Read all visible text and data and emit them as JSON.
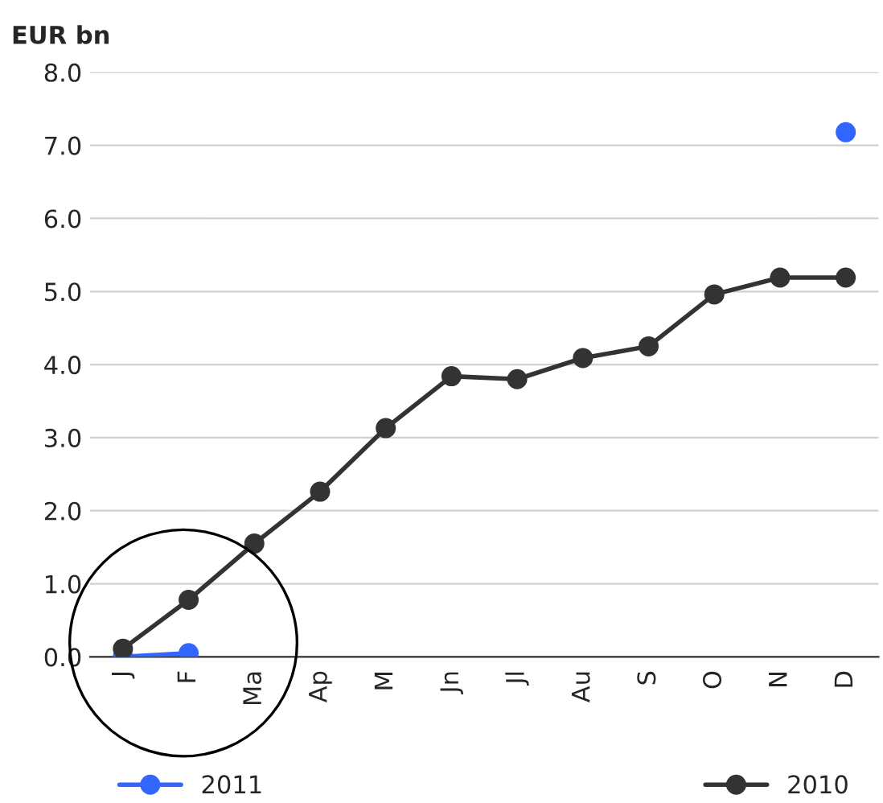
{
  "chart_data": {
    "type": "line",
    "ylabel": "EUR bn",
    "categories": [
      "J",
      "F",
      "Ma",
      "Ap",
      "M",
      "Jn",
      "Jl",
      "Au",
      "S",
      "O",
      "N",
      "D"
    ],
    "series": [
      {
        "name": "2011",
        "color": "#3366ff",
        "values": [
          0.0,
          0.05,
          null,
          null,
          null,
          null,
          null,
          null,
          null,
          null,
          null,
          7.18
        ]
      },
      {
        "name": "2010",
        "color": "#333333",
        "values": [
          0.11,
          0.78,
          1.55,
          2.26,
          3.13,
          3.84,
          3.8,
          4.09,
          4.25,
          4.96,
          5.19,
          5.19
        ]
      }
    ],
    "ylim": [
      0,
      8
    ],
    "yticks": [
      {
        "value": 0,
        "label": "0.0"
      },
      {
        "value": 1,
        "label": "1.0"
      },
      {
        "value": 2,
        "label": "2.0"
      },
      {
        "value": 3,
        "label": "3.0"
      },
      {
        "value": 4,
        "label": "4.0"
      },
      {
        "value": 5,
        "label": "5.0"
      },
      {
        "value": 6,
        "label": "6.0"
      },
      {
        "value": 7,
        "label": "7.0"
      },
      {
        "value": 8,
        "label": "8.0"
      }
    ],
    "grid": "y",
    "legend": "bottom",
    "marker": "circle",
    "line_style": "solid"
  }
}
